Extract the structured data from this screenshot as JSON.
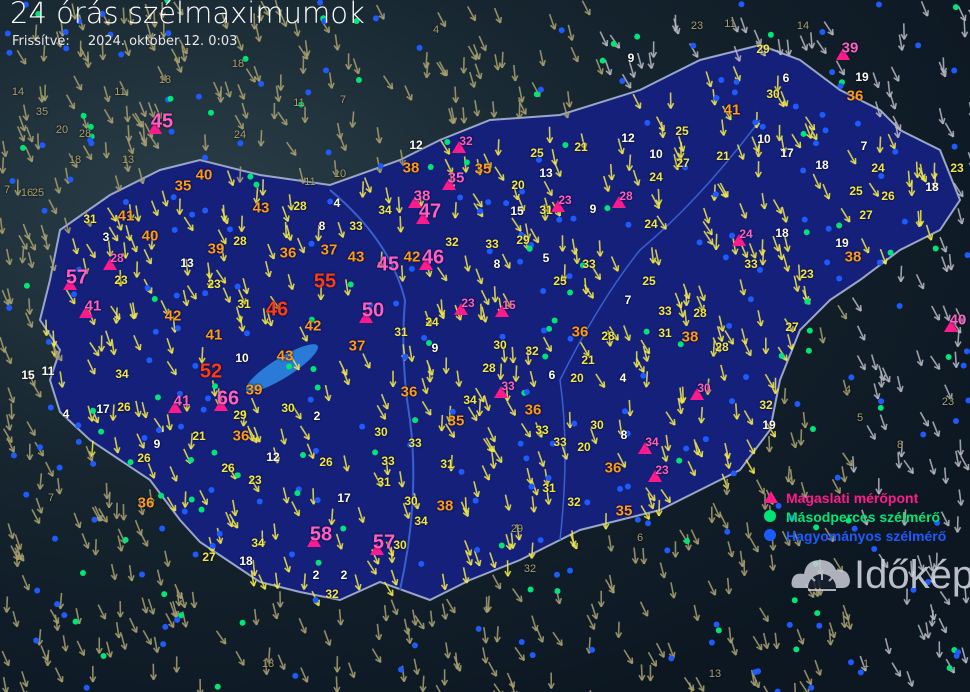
{
  "title": "24 órás szélmaximumok",
  "updated_label": "Frissítve:",
  "updated_value": "2024. október 12. 0:03",
  "legend": [
    {
      "label": "Magaslati mérőpont",
      "symbol": "triangle",
      "color": "#ff1a8c"
    },
    {
      "label": "Másodperces szélmérő",
      "symbol": "dot",
      "color": "#00e676"
    },
    {
      "label": "Hagyományos szélmérő",
      "symbol": "dot",
      "color": "#1e5bff"
    }
  ],
  "logo_text": "Időkép",
  "colors": {
    "white": "#ffffff",
    "yellow": "#f2e84b",
    "orange": "#ff9a1a",
    "red": "#ff3a1a",
    "pink": "#ff5fc8",
    "outside": "#a8a070",
    "country": "#14207a",
    "border": "#9aa6c8"
  },
  "stations": [
    57,
    45,
    41,
    28,
    55,
    50,
    45,
    42,
    46,
    47,
    38,
    35,
    32,
    52,
    66,
    41,
    58,
    57,
    39,
    41,
    40,
    30,
    34,
    23,
    24,
    23,
    15,
    33,
    28,
    23,
    40,
    43,
    41,
    40,
    39,
    36,
    37,
    43,
    42,
    41,
    46,
    42,
    43,
    39,
    37,
    36,
    36,
    36,
    38,
    38,
    28,
    33,
    34,
    32,
    33,
    29,
    33,
    25,
    24,
    31,
    30,
    32,
    34,
    35,
    33,
    31,
    30,
    30,
    26,
    31,
    30,
    38,
    34,
    34,
    27,
    32,
    36,
    28,
    33,
    31,
    38,
    28,
    28,
    32,
    36,
    35,
    31,
    32,
    33,
    33,
    30,
    36,
    24,
    25,
    27,
    33,
    23,
    24,
    27,
    25,
    25,
    21,
    35,
    29,
    30,
    36,
    24,
    25,
    26,
    27,
    23,
    31,
    23,
    23,
    28,
    31,
    34,
    26,
    29,
    26,
    26,
    23,
    33,
    28,
    35,
    9,
    6,
    19,
    10,
    7,
    17,
    18,
    12,
    10,
    21,
    13,
    20,
    15,
    9,
    12,
    4,
    8,
    3,
    13,
    5,
    7,
    9,
    21,
    6,
    20,
    4,
    10,
    11,
    15,
    17,
    4,
    21,
    9,
    12,
    2,
    8,
    20,
    19,
    17,
    18,
    2,
    2,
    30,
    18,
    19,
    18,
    31,
    8
  ],
  "outside_values": [
    23,
    11,
    14,
    4,
    7,
    35,
    20,
    28,
    18,
    11,
    18,
    24,
    16,
    25,
    18,
    7,
    11,
    10,
    14,
    11,
    13,
    5,
    4,
    8,
    23,
    1,
    13,
    18,
    7,
    29,
    32,
    6
  ]
}
